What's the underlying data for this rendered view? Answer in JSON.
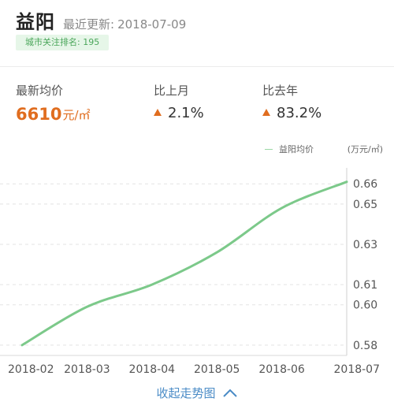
{
  "header": {
    "city": "益阳",
    "updated_label": "最近更新:",
    "updated_date": "2018-07-09"
  },
  "rank": {
    "text": "城市关注排名: 195"
  },
  "stats": {
    "price": {
      "label": "最新均价",
      "value": "6610",
      "unit": "元/㎡"
    },
    "mom": {
      "label": "比上月",
      "value": "2.1%"
    },
    "yoy": {
      "label": "比去年",
      "value": "83.2%"
    }
  },
  "colors": {
    "accent_orange": "#e06d1f",
    "line_green": "#7cc98a",
    "link_blue": "#4a8bc6",
    "badge_bg": "#e6f6e8",
    "badge_text": "#4aa65a"
  },
  "chart_data": {
    "type": "line",
    "legend": "益阳均价",
    "unit_label": "(万元/㎡)",
    "x": [
      "2018-02",
      "2018-03",
      "2018-04",
      "2018-05",
      "2018-06",
      "2018-07"
    ],
    "series": [
      {
        "name": "益阳均价",
        "values": [
          0.58,
          0.599,
          0.61,
          0.626,
          0.648,
          0.661
        ]
      }
    ],
    "y_ticks": [
      "0.66",
      "0.65",
      "0.63",
      "0.61",
      "0.60",
      "0.58"
    ],
    "ylim": [
      0.578,
      0.664
    ],
    "grid": true
  },
  "footer": {
    "collapse_label": "收起走势图"
  }
}
